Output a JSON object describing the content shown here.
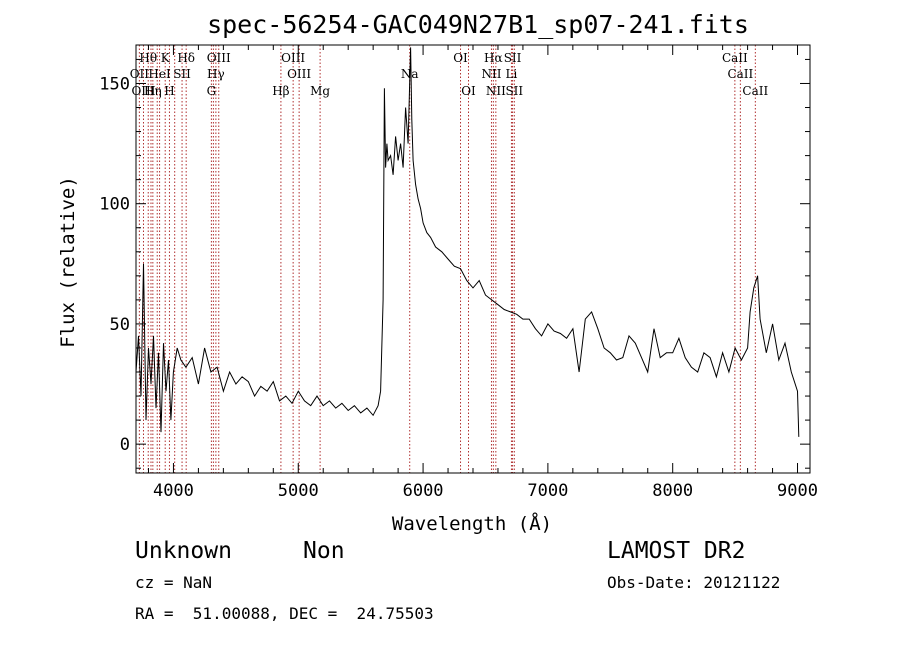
{
  "chart_data": {
    "type": "line",
    "title": "spec-56254-GAC049N27B1_sp07-241.fits",
    "xlabel": "Wavelength (Å)",
    "ylabel": "Flux (relative)",
    "xlim": [
      3700,
      9100
    ],
    "ylim": [
      -12,
      166
    ],
    "xticks": [
      4000,
      5000,
      6000,
      7000,
      8000,
      9000
    ],
    "yticks": [
      0,
      50,
      100,
      150
    ],
    "grid": false,
    "line_color": "#000000",
    "marker_color": "#b03030",
    "series": [
      {
        "x": [
          3700,
          3720,
          3740,
          3760,
          3780,
          3800,
          3820,
          3840,
          3860,
          3880,
          3900,
          3920,
          3940,
          3960,
          3980,
          4000,
          4030,
          4060,
          4100,
          4150,
          4200,
          4250,
          4300,
          4350,
          4400,
          4450,
          4500,
          4550,
          4600,
          4650,
          4700,
          4750,
          4800,
          4850,
          4900,
          4950,
          5000,
          5050,
          5100,
          5150,
          5200,
          5250,
          5300,
          5350,
          5400,
          5450,
          5500,
          5550,
          5600,
          5640,
          5660,
          5680,
          5690,
          5700,
          5710,
          5720,
          5740,
          5760,
          5780,
          5800,
          5820,
          5840,
          5860,
          5880,
          5900,
          5910,
          5920,
          5940,
          5960,
          5980,
          6000,
          6030,
          6060,
          6100,
          6150,
          6200,
          6250,
          6300,
          6350,
          6400,
          6450,
          6500,
          6550,
          6600,
          6650,
          6700,
          6750,
          6800,
          6850,
          6900,
          6950,
          7000,
          7050,
          7100,
          7150,
          7200,
          7250,
          7300,
          7350,
          7400,
          7450,
          7500,
          7550,
          7600,
          7650,
          7700,
          7750,
          7800,
          7850,
          7900,
          7950,
          8000,
          8050,
          8100,
          8150,
          8200,
          8250,
          8300,
          8350,
          8400,
          8450,
          8500,
          8550,
          8600,
          8620,
          8650,
          8680,
          8700,
          8750,
          8800,
          8850,
          8900,
          8950,
          9000,
          9010
        ],
        "y": [
          30,
          45,
          20,
          75,
          10,
          40,
          25,
          45,
          15,
          38,
          5,
          42,
          22,
          35,
          10,
          30,
          40,
          35,
          32,
          36,
          25,
          40,
          30,
          32,
          22,
          30,
          25,
          28,
          26,
          20,
          24,
          22,
          26,
          18,
          20,
          17,
          22,
          18,
          16,
          20,
          16,
          18,
          15,
          17,
          14,
          16,
          13,
          15,
          12,
          16,
          22,
          60,
          148,
          115,
          125,
          118,
          120,
          112,
          128,
          118,
          125,
          115,
          140,
          125,
          165,
          135,
          118,
          108,
          102,
          98,
          92,
          88,
          86,
          82,
          80,
          77,
          74,
          73,
          68,
          65,
          68,
          62,
          60,
          58,
          56,
          55,
          54,
          52,
          52,
          48,
          45,
          50,
          47,
          46,
          44,
          48,
          30,
          52,
          55,
          48,
          40,
          38,
          35,
          36,
          45,
          42,
          36,
          30,
          48,
          36,
          38,
          38,
          44,
          36,
          32,
          30,
          38,
          36,
          28,
          38,
          30,
          40,
          35,
          40,
          55,
          65,
          70,
          52,
          38,
          50,
          35,
          42,
          30,
          22,
          3
        ]
      }
    ],
    "annotations": {
      "lines_row1": [
        {
          "label": "Hθ",
          "x": 3798
        },
        {
          "label": "K",
          "x": 3934
        },
        {
          "label": "Hδ",
          "x": 4102
        },
        {
          "label": "OIII",
          "x": 4363
        },
        {
          "label": "OIII",
          "x": 4959
        },
        {
          "label": "OI",
          "x": 6300
        },
        {
          "label": "Hα",
          "x": 6563
        },
        {
          "label": "SII",
          "x": 6717
        },
        {
          "label": "CaII",
          "x": 8498
        }
      ],
      "lines_row2": [
        {
          "label": "OII",
          "x": 3727
        },
        {
          "label": "HeI",
          "x": 3889
        },
        {
          "label": "SII",
          "x": 4069
        },
        {
          "label": "Hγ",
          "x": 4340
        },
        {
          "label": "OIII",
          "x": 5007
        },
        {
          "label": "Na",
          "x": 5893
        },
        {
          "label": "NII",
          "x": 6548
        },
        {
          "label": "Li",
          "x": 6708
        },
        {
          "label": "CaII",
          "x": 8542
        }
      ],
      "lines_row3": [
        {
          "label": "OIII",
          "x": 3760
        },
        {
          "label": "Hη",
          "x": 3835
        },
        {
          "label": "H",
          "x": 3968
        },
        {
          "label": "G",
          "x": 4304
        },
        {
          "label": "Hβ",
          "x": 4861
        },
        {
          "label": "Mg",
          "x": 5175
        },
        {
          "label": "OI",
          "x": 6364
        },
        {
          "label": "NII",
          "x": 6583
        },
        {
          "label": "SII",
          "x": 6731
        },
        {
          "label": "CaII",
          "x": 8662
        }
      ],
      "extra_marker_lines": [
        3820,
        3870,
        4010,
        4320
      ]
    }
  },
  "footer": {
    "object_class": "Unknown",
    "subclass": "Non",
    "survey": "LAMOST DR2",
    "cz": "cz = NaN",
    "obs_date": "Obs-Date: 20121122",
    "coords": "RA =  51.00088, DEC =  24.75503"
  }
}
